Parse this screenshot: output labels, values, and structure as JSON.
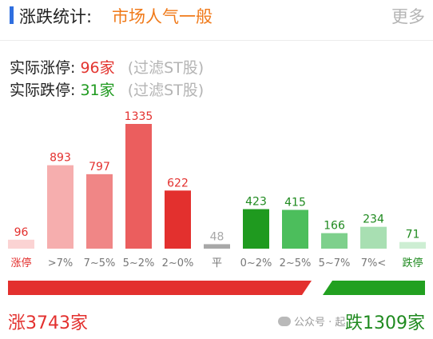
{
  "header": {
    "title": "涨跌统计:",
    "subtitle": "市场人气一般",
    "more_label": "更多"
  },
  "limit_up": {
    "label": "实际涨停:",
    "count": "96家",
    "note": "(过滤ST股)"
  },
  "limit_down": {
    "label": "实际跌停:",
    "count": "31家",
    "note": "(过滤ST股)"
  },
  "totals": {
    "up_label": "涨3743家",
    "down_label": "跌1309家",
    "up_count": 3743,
    "down_count": 1309
  },
  "watermark": "公众号 · 起",
  "colors": {
    "accent": "#2f6fe0",
    "up": "#e3302e",
    "down": "#22a020",
    "neutral": "#a8a8a8"
  },
  "chart_data": {
    "type": "bar",
    "title": "",
    "xlabel": "",
    "ylabel": "",
    "categories": [
      "涨停",
      ">7%",
      "7~5%",
      "5~2%",
      "2~0%",
      "平",
      "0~2%",
      "2~5%",
      "5~7%",
      "7%<",
      "跌停"
    ],
    "values": [
      96,
      893,
      797,
      1335,
      622,
      48,
      423,
      415,
      166,
      234,
      71
    ],
    "bar_colors": [
      "#fbd3d3",
      "#f6aeae",
      "#f08686",
      "#eb5e5e",
      "#e3302e",
      "#a8a8a8",
      "#1f9a1f",
      "#4cbe5c",
      "#7ed08c",
      "#a8dfb2",
      "#cdeed3"
    ],
    "label_colors": [
      "#e3302e",
      "#e3302e",
      "#e3302e",
      "#e3302e",
      "#e3302e",
      "#a8a8a8",
      "#1f8a1f",
      "#1f8a1f",
      "#1f8a1f",
      "#1f8a1f",
      "#1f8a1f"
    ],
    "tick_colors": [
      "#e3302e",
      "#777777",
      "#777777",
      "#777777",
      "#777777",
      "#777777",
      "#777777",
      "#777777",
      "#777777",
      "#777777",
      "#1f8a1f"
    ],
    "ylim": [
      0,
      1335
    ],
    "grid": false,
    "legend": "none"
  }
}
